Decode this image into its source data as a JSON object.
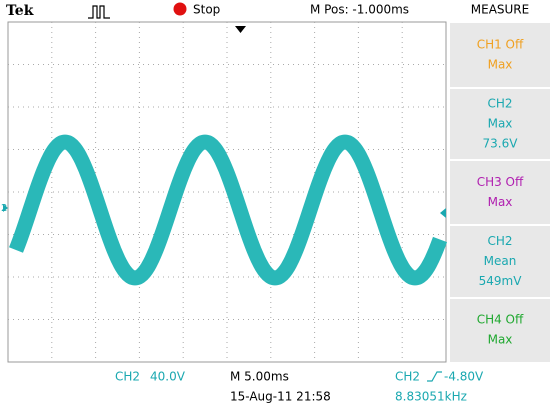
{
  "header": {
    "brand": "Tek",
    "status": "Stop",
    "position": "M Pos: -1.000ms",
    "panel_title": "MEASURE"
  },
  "ground_marker": "2",
  "measurements": [
    {
      "color": "#f0a020",
      "lines": [
        "CH1 Off",
        "Max"
      ]
    },
    {
      "color": "#1aa8b0",
      "lines": [
        "CH2",
        "Max",
        "73.6V"
      ]
    },
    {
      "color": "#b020b0",
      "lines": [
        "CH3 Off",
        "Max"
      ]
    },
    {
      "color": "#1aa8b0",
      "lines": [
        "CH2",
        "Mean",
        "549mV"
      ]
    },
    {
      "color": "#20a830",
      "lines": [
        "CH4 Off",
        "Max"
      ]
    }
  ],
  "footer": {
    "channel": "CH2",
    "scale": "40.0V",
    "timebase": "M 5.00ms",
    "trigger_channel": "CH2",
    "trigger_level": "-4.80V",
    "datetime": "15-Aug-11 21:58",
    "frequency": "8.83051kHz"
  }
}
